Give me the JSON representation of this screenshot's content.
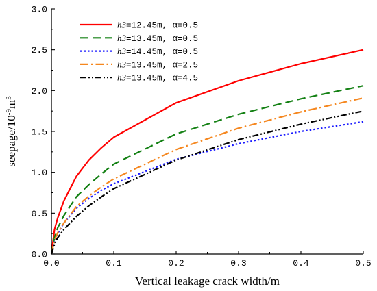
{
  "chart_data": {
    "type": "line",
    "xlabel": "Vertical leakage crack width/m",
    "ylabel": {
      "prefix": "seepage/10",
      "exp1": "-9",
      "mid": "m",
      "exp2": "3"
    },
    "xlim": [
      0,
      0.5
    ],
    "ylim": [
      0,
      3.0
    ],
    "xticks": [
      "0.0",
      "0.1",
      "0.2",
      "0.3",
      "0.4",
      "0.5"
    ],
    "yticks": [
      "0.0",
      "0.5",
      "1.0",
      "1.5",
      "2.0",
      "2.5",
      "3.0"
    ],
    "grid": false,
    "legend_position": "top-left",
    "series": [
      {
        "name": "h3=12.45m, α=0.5",
        "legend": {
          "var": "h3",
          "rest": "=12.45m, α=0.5"
        },
        "color": "#ff0000",
        "dash": "",
        "x": [
          0,
          0.005,
          0.01,
          0.02,
          0.04,
          0.06,
          0.08,
          0.1,
          0.2,
          0.3,
          0.4,
          0.5
        ],
        "y": [
          0,
          0.3,
          0.44,
          0.65,
          0.95,
          1.15,
          1.3,
          1.43,
          1.85,
          2.12,
          2.33,
          2.5
        ]
      },
      {
        "name": "h3=13.45m, α=0.5",
        "legend": {
          "var": "h3",
          "rest": "=13.45m, α=0.5"
        },
        "color": "#138013",
        "dash": "12,6",
        "x": [
          0,
          0.005,
          0.01,
          0.02,
          0.04,
          0.06,
          0.08,
          0.1,
          0.2,
          0.3,
          0.4,
          0.5
        ],
        "y": [
          0,
          0.2,
          0.32,
          0.47,
          0.7,
          0.85,
          0.98,
          1.1,
          1.47,
          1.71,
          1.9,
          2.06
        ]
      },
      {
        "name": "h3=14.45m, α=0.5",
        "legend": {
          "var": "h3",
          "rest": "=14.45m, α=0.5"
        },
        "color": "#1a1aff",
        "dash": "2.5,3",
        "x": [
          0,
          0.005,
          0.01,
          0.02,
          0.04,
          0.06,
          0.08,
          0.1,
          0.2,
          0.3,
          0.4,
          0.5
        ],
        "y": [
          0,
          0.15,
          0.25,
          0.38,
          0.56,
          0.68,
          0.78,
          0.86,
          1.16,
          1.35,
          1.5,
          1.62
        ]
      },
      {
        "name": "h3=13.45m, α=2.5",
        "legend": {
          "var": "h3",
          "rest": "=13.45m, α=2.5"
        },
        "color": "#f5871f",
        "dash": "12,4,2.5,4",
        "x": [
          0,
          0.005,
          0.01,
          0.02,
          0.04,
          0.06,
          0.08,
          0.1,
          0.2,
          0.3,
          0.4,
          0.5
        ],
        "y": [
          0,
          0.17,
          0.26,
          0.38,
          0.58,
          0.71,
          0.82,
          0.92,
          1.28,
          1.54,
          1.74,
          1.91
        ]
      },
      {
        "name": "h3=13.45m, α=4.5",
        "legend": {
          "var": "h3",
          "rest": "=13.45m, α=4.5"
        },
        "color": "#000000",
        "dash": "9,3,2,3,2,3",
        "x": [
          0,
          0.005,
          0.01,
          0.02,
          0.04,
          0.06,
          0.08,
          0.1,
          0.2,
          0.3,
          0.4,
          0.5
        ],
        "y": [
          0,
          0.12,
          0.2,
          0.3,
          0.46,
          0.59,
          0.7,
          0.8,
          1.15,
          1.4,
          1.59,
          1.75
        ]
      }
    ]
  }
}
